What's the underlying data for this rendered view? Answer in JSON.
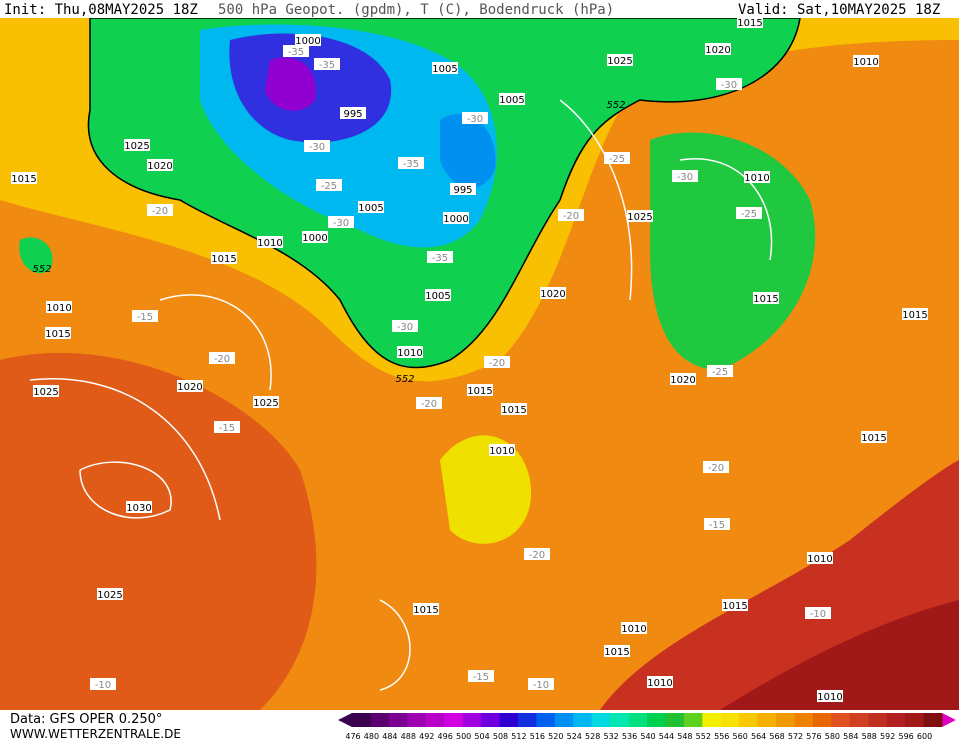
{
  "header": {
    "init": "Init: Thu,08MAY2025 18Z",
    "title": "500 hPa Geopot. (gpdm), T (C), Bodendruck (hPa)",
    "valid": "Valid: Sat,10MAY2025 18Z"
  },
  "footer": {
    "data": "Data: GFS OPER 0.250°",
    "site": "WWW.WETTERZENTRALE.DE"
  },
  "colorbar": {
    "ticks": [
      476,
      480,
      484,
      488,
      492,
      496,
      500,
      504,
      508,
      512,
      516,
      520,
      524,
      528,
      532,
      536,
      540,
      544,
      548,
      552,
      556,
      560,
      564,
      568,
      572,
      576,
      580,
      584,
      588,
      592,
      596,
      600
    ],
    "colors": [
      "#3a0050",
      "#5a0070",
      "#7a0090",
      "#9a00b0",
      "#b800c8",
      "#d000e0",
      "#a000e0",
      "#7000e0",
      "#3000d0",
      "#1030e0",
      "#0060f0",
      "#0090f0",
      "#00b8f0",
      "#00d8e0",
      "#00e8b0",
      "#00e080",
      "#00d050",
      "#20c030",
      "#60d020",
      "#f0f000",
      "#f8e000",
      "#f8c800",
      "#f8b000",
      "#f09800",
      "#f08000",
      "#e86800",
      "#e05020",
      "#d04020",
      "#c03020",
      "#b02020",
      "#a01818",
      "#801010"
    ]
  },
  "map": {
    "pressure_labels": [
      "1000",
      "1005",
      "995",
      "1005",
      "1025",
      "1020",
      "1015",
      "995",
      "1005",
      "1000",
      "1010",
      "1000",
      "1015",
      "1005",
      "1010",
      "1015",
      "1010",
      "1020",
      "1025",
      "1025",
      "1015",
      "1015",
      "1010",
      "1030",
      "1025",
      "1015",
      "1010",
      "1015",
      "1010",
      "1010",
      "1010",
      "1015",
      "1015",
      "1015",
      "1015",
      "1020",
      "1025",
      "1010",
      "1025",
      "1020",
      "1015",
      "1010",
      "1020"
    ],
    "temperature_labels": [
      "-35",
      "-35",
      "-30",
      "-25",
      "-30",
      "-35",
      "-30",
      "-35",
      "-30",
      "-20",
      "-15",
      "-20",
      "-15",
      "-20",
      "-20",
      "-20",
      "-25",
      "-30",
      "-30",
      "-25",
      "-25",
      "-20",
      "-15",
      "-20",
      "-10",
      "-15",
      "-10",
      "-10"
    ],
    "height_labels": [
      "552",
      "552",
      "552"
    ]
  }
}
